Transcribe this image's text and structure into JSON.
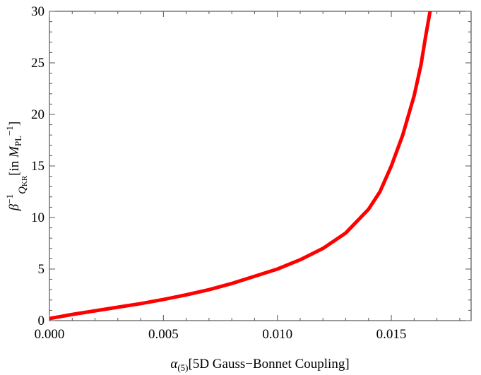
{
  "chart_data": {
    "type": "line",
    "title": "",
    "xlabel": {
      "symbol": "α",
      "subscript": "(5)",
      "text": "[5D Gauss−Bonnet Coupling]"
    },
    "ylabel": {
      "symbol": "β",
      "superscript": "−1",
      "subscript": "Q",
      "subsubscript": "KR",
      "text_start": "[in ",
      "unit": "M",
      "unit_subscript": "PL",
      "unit_superscript": "−1",
      "text_end": "]"
    },
    "xlim": [
      0.0,
      0.0185
    ],
    "ylim": [
      0,
      30
    ],
    "x_ticks": [
      0.0,
      0.005,
      0.01,
      0.015
    ],
    "x_tick_labels": [
      "0.000",
      "0.005",
      "0.010",
      "0.015"
    ],
    "y_ticks": [
      0,
      5,
      10,
      15,
      20,
      25,
      30
    ],
    "y_tick_labels": [
      "0",
      "5",
      "10",
      "15",
      "20",
      "25",
      "30"
    ],
    "grid": false,
    "series": [
      {
        "color": "#ff0000",
        "x": [
          0.0,
          0.001,
          0.002,
          0.003,
          0.004,
          0.005,
          0.006,
          0.007,
          0.008,
          0.009,
          0.01,
          0.011,
          0.012,
          0.013,
          0.014,
          0.0145,
          0.015,
          0.0155,
          0.016,
          0.0163,
          0.0165,
          0.0167
        ],
        "y": [
          0.2,
          0.6,
          0.95,
          1.3,
          1.65,
          2.05,
          2.5,
          3.0,
          3.6,
          4.3,
          5.0,
          5.9,
          7.0,
          8.5,
          10.8,
          12.5,
          15.0,
          18.0,
          21.8,
          24.8,
          27.5,
          30.0
        ]
      }
    ]
  }
}
